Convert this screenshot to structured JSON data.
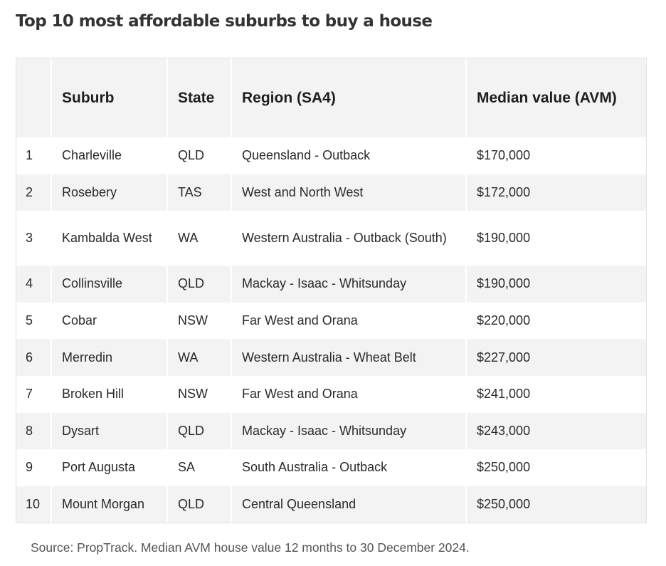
{
  "title": "Top 10 most affordable suburbs to buy a house",
  "table": {
    "headers": {
      "rank": "",
      "suburb": "Suburb",
      "state": "State",
      "region": "Region (SA4)",
      "value": "Median value (AVM)"
    },
    "rows": [
      {
        "rank": "1",
        "suburb": "Charleville",
        "state": "QLD",
        "region": "Queensland - Outback",
        "value": "$170,000"
      },
      {
        "rank": "2",
        "suburb": "Rosebery",
        "state": "TAS",
        "region": "West and North West",
        "value": "$172,000"
      },
      {
        "rank": "3",
        "suburb": "Kambalda West",
        "state": "WA",
        "region": "Western Australia - Outback (South)",
        "value": "$190,000"
      },
      {
        "rank": "4",
        "suburb": "Collinsville",
        "state": "QLD",
        "region": "Mackay - Isaac - Whitsunday",
        "value": "$190,000"
      },
      {
        "rank": "5",
        "suburb": "Cobar",
        "state": "NSW",
        "region": "Far West and Orana",
        "value": "$220,000"
      },
      {
        "rank": "6",
        "suburb": "Merredin",
        "state": "WA",
        "region": "Western Australia - Wheat Belt",
        "value": "$227,000"
      },
      {
        "rank": "7",
        "suburb": "Broken Hill",
        "state": "NSW",
        "region": "Far West and Orana",
        "value": "$241,000"
      },
      {
        "rank": "8",
        "suburb": "Dysart",
        "state": "QLD",
        "region": "Mackay - Isaac - Whitsunday",
        "value": "$243,000"
      },
      {
        "rank": "9",
        "suburb": "Port Augusta",
        "state": "SA",
        "region": "South Australia - Outback",
        "value": "$250,000"
      },
      {
        "rank": "10",
        "suburb": "Mount Morgan",
        "state": "QLD",
        "region": "Central Queensland",
        "value": "$250,000"
      }
    ]
  },
  "source": "Source: PropTrack. Median AVM house value 12 months to 30 December 2024."
}
